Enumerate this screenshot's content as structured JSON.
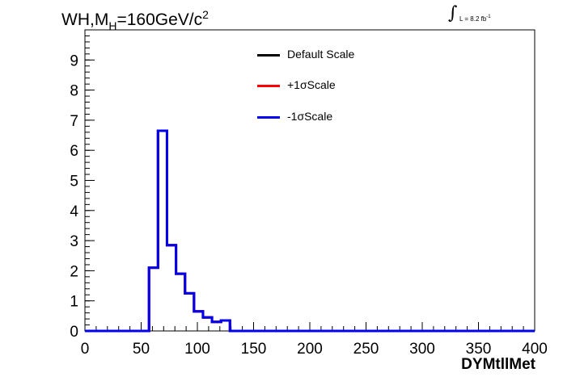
{
  "title": {
    "prefix": "WH,M",
    "subscript": "H",
    "value": "=160GeV/c",
    "superscript": "2"
  },
  "luminosity": {
    "integral": "∫",
    "text": "L = 8.2 fb",
    "superscript": "-1"
  },
  "colors": {
    "default": "#000000",
    "plus": "#ff0000",
    "minus": "#0000ee"
  },
  "chart_data": {
    "type": "line",
    "title": "WH,M_H=160GeV/c^2",
    "xlabel": "DYMtllMet",
    "ylabel": "",
    "xlim": [
      0,
      400
    ],
    "ylim": [
      0,
      10
    ],
    "x_ticks": [
      0,
      50,
      100,
      150,
      200,
      250,
      300,
      350,
      400
    ],
    "y_ticks": [
      0,
      1,
      2,
      3,
      4,
      5,
      6,
      7,
      8,
      9
    ],
    "bin_edges": [
      0,
      57,
      65,
      73,
      81,
      89,
      97,
      105,
      113,
      121,
      129,
      400
    ],
    "legend_position": "top-center",
    "series": [
      {
        "name": "Default Scale",
        "color": "#000000",
        "values": [
          0,
          2.1,
          6.65,
          2.85,
          1.9,
          1.25,
          0.65,
          0.45,
          0.3,
          0.35,
          0
        ]
      },
      {
        "name": "+1σScale",
        "color": "#ff0000",
        "values": [
          0,
          2.1,
          6.65,
          2.85,
          1.9,
          1.25,
          0.65,
          0.45,
          0.3,
          0.35,
          0
        ]
      },
      {
        "name": "-1σScale",
        "color": "#0000ee",
        "values": [
          0,
          2.1,
          6.65,
          2.85,
          1.9,
          1.25,
          0.65,
          0.45,
          0.3,
          0.35,
          0
        ]
      }
    ]
  }
}
